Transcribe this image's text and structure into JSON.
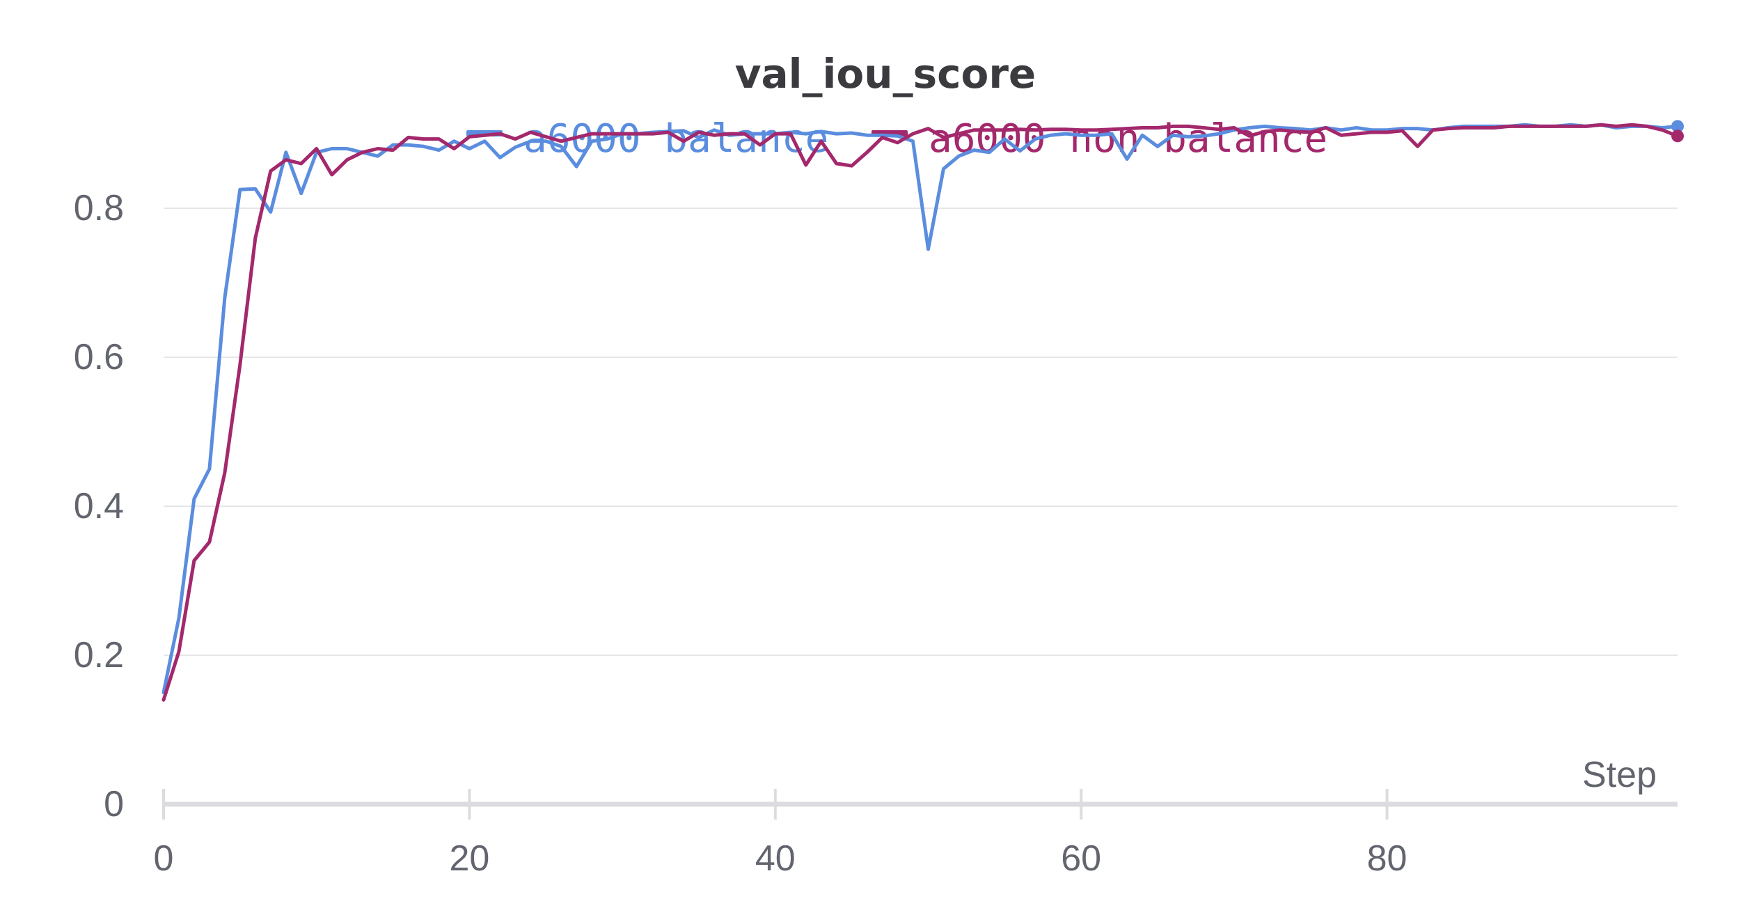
{
  "chart_data": {
    "type": "line",
    "title": "val_iou_score",
    "xlabel": "Step",
    "ylabel": "",
    "xlim": [
      0,
      99
    ],
    "ylim": [
      0,
      0.93
    ],
    "xticks": [
      "0",
      "20",
      "40",
      "60",
      "80"
    ],
    "xtick_values": [
      0,
      20,
      40,
      60,
      80
    ],
    "yticks": [
      "0",
      "0.2",
      "0.4",
      "0.6",
      "0.8"
    ],
    "ytick_values": [
      0,
      0.2,
      0.4,
      0.6,
      0.8
    ],
    "grid": "horizontal",
    "legend_position": "top-center",
    "series": [
      {
        "name": "a6000 balance",
        "color": "#5b8ddf",
        "x": [
          0,
          1,
          2,
          3,
          4,
          5,
          6,
          7,
          8,
          9,
          10,
          11,
          12,
          13,
          14,
          15,
          16,
          17,
          18,
          19,
          20,
          21,
          22,
          23,
          24,
          25,
          26,
          27,
          28,
          29,
          30,
          31,
          32,
          33,
          34,
          35,
          36,
          37,
          38,
          39,
          40,
          41,
          42,
          43,
          44,
          45,
          46,
          47,
          48,
          49,
          50,
          51,
          52,
          53,
          54,
          55,
          56,
          57,
          58,
          59,
          60,
          61,
          62,
          63,
          64,
          65,
          66,
          67,
          68,
          69,
          70,
          71,
          72,
          73,
          74,
          75,
          76,
          77,
          78,
          79,
          80,
          81,
          82,
          83,
          84,
          85,
          86,
          87,
          88,
          89,
          90,
          91,
          92,
          93,
          94,
          95,
          96,
          97,
          98,
          99
        ],
        "values": [
          0.15,
          0.25,
          0.41,
          0.45,
          0.68,
          0.825,
          0.826,
          0.795,
          0.875,
          0.82,
          0.875,
          0.88,
          0.88,
          0.875,
          0.87,
          0.885,
          0.885,
          0.883,
          0.878,
          0.89,
          0.88,
          0.89,
          0.868,
          0.882,
          0.89,
          0.89,
          0.883,
          0.856,
          0.89,
          0.893,
          0.9,
          0.9,
          0.902,
          0.903,
          0.904,
          0.895,
          0.905,
          0.898,
          0.9,
          0.9,
          0.9,
          0.902,
          0.9,
          0.903,
          0.9,
          0.901,
          0.898,
          0.898,
          0.897,
          0.89,
          0.745,
          0.853,
          0.87,
          0.878,
          0.875,
          0.893,
          0.877,
          0.893,
          0.898,
          0.9,
          0.898,
          0.898,
          0.9,
          0.866,
          0.898,
          0.883,
          0.898,
          0.896,
          0.897,
          0.9,
          0.905,
          0.908,
          0.91,
          0.908,
          0.907,
          0.905,
          0.908,
          0.905,
          0.908,
          0.905,
          0.905,
          0.907,
          0.907,
          0.905,
          0.908,
          0.91,
          0.91,
          0.91,
          0.91,
          0.912,
          0.91,
          0.91,
          0.912,
          0.91,
          0.912,
          0.908,
          0.91,
          0.91,
          0.908,
          0.91
        ]
      },
      {
        "name": "a6000 non balance",
        "color": "#a3286c",
        "x": [
          0,
          1,
          2,
          3,
          4,
          5,
          6,
          7,
          8,
          9,
          10,
          11,
          12,
          13,
          14,
          15,
          16,
          17,
          18,
          19,
          20,
          21,
          22,
          23,
          24,
          25,
          26,
          27,
          28,
          29,
          30,
          31,
          32,
          33,
          34,
          35,
          36,
          37,
          38,
          39,
          40,
          41,
          42,
          43,
          44,
          45,
          46,
          47,
          48,
          49,
          50,
          51,
          52,
          53,
          54,
          55,
          56,
          57,
          58,
          59,
          60,
          61,
          62,
          63,
          64,
          65,
          66,
          67,
          68,
          69,
          70,
          71,
          72,
          73,
          74,
          75,
          76,
          77,
          78,
          79,
          80,
          81,
          82,
          83,
          84,
          85,
          86,
          87,
          88,
          89,
          90,
          91,
          92,
          93,
          94,
          95,
          96,
          97,
          98,
          99
        ],
        "values": [
          0.14,
          0.205,
          0.327,
          0.352,
          0.445,
          0.59,
          0.76,
          0.85,
          0.865,
          0.86,
          0.88,
          0.845,
          0.865,
          0.875,
          0.88,
          0.878,
          0.895,
          0.893,
          0.893,
          0.88,
          0.896,
          0.898,
          0.9,
          0.893,
          0.902,
          0.896,
          0.89,
          0.895,
          0.9,
          0.9,
          0.9,
          0.9,
          0.9,
          0.902,
          0.89,
          0.902,
          0.898,
          0.9,
          0.9,
          0.885,
          0.9,
          0.9,
          0.858,
          0.89,
          0.86,
          0.857,
          0.875,
          0.895,
          0.888,
          0.9,
          0.907,
          0.895,
          0.9,
          0.905,
          0.905,
          0.905,
          0.906,
          0.905,
          0.906,
          0.906,
          0.905,
          0.905,
          0.906,
          0.907,
          0.908,
          0.908,
          0.91,
          0.91,
          0.908,
          0.906,
          0.908,
          0.897,
          0.903,
          0.905,
          0.903,
          0.902,
          0.908,
          0.898,
          0.9,
          0.902,
          0.902,
          0.904,
          0.883,
          0.905,
          0.907,
          0.908,
          0.908,
          0.908,
          0.91,
          0.91,
          0.91,
          0.91,
          0.91,
          0.91,
          0.912,
          0.91,
          0.912,
          0.91,
          0.905,
          0.897
        ]
      }
    ]
  }
}
